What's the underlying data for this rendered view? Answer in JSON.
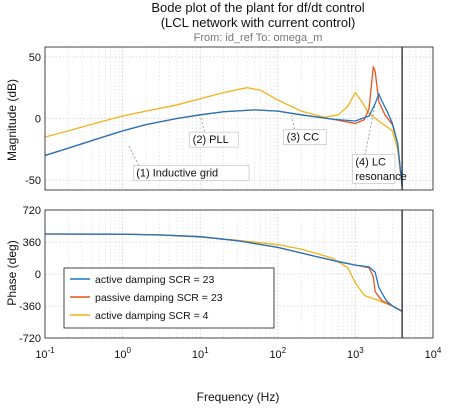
{
  "header": {
    "title": "Bode plot of the plant for df/dt control",
    "subtitle": "(LCL network with current control)",
    "from_to": "From: id_ref  To: omega_m"
  },
  "chart_data": {
    "type": "line",
    "x_scale": "log",
    "xlim": [
      0.1,
      10000
    ],
    "xlabel": "Frequency  (Hz)",
    "x_ticks": [
      {
        "value": 0.1,
        "base": "10",
        "exp": "-1"
      },
      {
        "value": 1,
        "base": "10",
        "exp": "0"
      },
      {
        "value": 10,
        "base": "10",
        "exp": "1"
      },
      {
        "value": 100,
        "base": "10",
        "exp": "2"
      },
      {
        "value": 1000,
        "base": "10",
        "exp": "3"
      },
      {
        "value": 10000,
        "base": "10",
        "exp": "4"
      }
    ],
    "grid": true,
    "vertical_marker_x": 4000,
    "magnitude": {
      "ylabel": "Magnitude (dB)",
      "ylim": [
        -58,
        58
      ],
      "y_ticks": [
        50,
        0,
        -50
      ],
      "series": [
        {
          "label": "active damping SCR = 23",
          "color": "#1f77c4",
          "points": [
            [
              0.1,
              -30
            ],
            [
              0.2,
              -24
            ],
            [
              0.5,
              -16
            ],
            [
              1,
              -10
            ],
            [
              2,
              -5
            ],
            [
              5,
              0
            ],
            [
              10,
              3
            ],
            [
              20,
              5.5
            ],
            [
              50,
              7
            ],
            [
              100,
              6
            ],
            [
              200,
              3
            ],
            [
              500,
              -0.5
            ],
            [
              1000,
              -2
            ],
            [
              1500,
              2
            ],
            [
              1800,
              12
            ],
            [
              2000,
              20
            ],
            [
              2200,
              14
            ],
            [
              2600,
              5
            ],
            [
              3000,
              -4
            ],
            [
              3500,
              -20
            ],
            [
              4000,
              -55
            ]
          ]
        },
        {
          "label": "passive damping SCR = 23",
          "color": "#e8541e",
          "points": [
            [
              0.1,
              -30
            ],
            [
              0.2,
              -24
            ],
            [
              0.5,
              -16
            ],
            [
              1,
              -10
            ],
            [
              2,
              -5
            ],
            [
              5,
              0
            ],
            [
              10,
              3
            ],
            [
              20,
              5.5
            ],
            [
              50,
              7
            ],
            [
              100,
              6
            ],
            [
              200,
              3
            ],
            [
              500,
              -0.5
            ],
            [
              1000,
              -4
            ],
            [
              1300,
              -1
            ],
            [
              1500,
              8
            ],
            [
              1700,
              42
            ],
            [
              1800,
              38
            ],
            [
              2000,
              14
            ],
            [
              2400,
              3
            ],
            [
              3000,
              -5
            ],
            [
              3500,
              -20
            ],
            [
              4000,
              -55
            ]
          ]
        },
        {
          "label": "active damping SCR = 4",
          "color": "#f0b31a",
          "points": [
            [
              0.1,
              -15
            ],
            [
              0.2,
              -10
            ],
            [
              0.5,
              -3
            ],
            [
              1,
              2
            ],
            [
              2,
              6
            ],
            [
              5,
              11
            ],
            [
              10,
              16
            ],
            [
              20,
              21
            ],
            [
              40,
              25
            ],
            [
              60,
              23
            ],
            [
              100,
              15
            ],
            [
              200,
              6
            ],
            [
              400,
              1
            ],
            [
              600,
              3
            ],
            [
              800,
              10
            ],
            [
              1000,
              21
            ],
            [
              1200,
              14
            ],
            [
              1500,
              4
            ],
            [
              2000,
              -2
            ],
            [
              3000,
              -10
            ],
            [
              3500,
              -25
            ],
            [
              4000,
              -55
            ]
          ]
        }
      ],
      "annotations": [
        {
          "text": "(1) Inductive grid",
          "x": 1.5,
          "y": -47
        },
        {
          "text": "(2) PLL",
          "x": 8,
          "y": -20
        },
        {
          "text": "(3) CC",
          "x": 130,
          "y": -18
        },
        {
          "text": "(4) LC",
          "x": 1000,
          "y": -38
        },
        {
          "text": "resonance",
          "x": 1000,
          "y": -50
        }
      ]
    },
    "phase": {
      "ylabel": "Phase (deg)",
      "ylim": [
        -720,
        720
      ],
      "y_ticks": [
        720,
        360,
        0,
        -360,
        -720
      ],
      "series": [
        {
          "label": "active damping SCR = 23",
          "color": "#1f77c4",
          "points": [
            [
              0.1,
              450
            ],
            [
              1,
              448
            ],
            [
              3,
              440
            ],
            [
              10,
              420
            ],
            [
              30,
              375
            ],
            [
              100,
              300
            ],
            [
              300,
              200
            ],
            [
              600,
              140
            ],
            [
              1000,
              100
            ],
            [
              1500,
              80
            ],
            [
              1800,
              20
            ],
            [
              2000,
              -150
            ],
            [
              2500,
              -300
            ],
            [
              3000,
              -360
            ],
            [
              4000,
              -420
            ]
          ]
        },
        {
          "label": "passive damping SCR = 23",
          "color": "#e8541e",
          "points": [
            [
              0.1,
              450
            ],
            [
              1,
              448
            ],
            [
              3,
              440
            ],
            [
              10,
              420
            ],
            [
              30,
              375
            ],
            [
              100,
              300
            ],
            [
              300,
              200
            ],
            [
              600,
              140
            ],
            [
              1000,
              100
            ],
            [
              1500,
              70
            ],
            [
              1700,
              -30
            ],
            [
              1800,
              -200
            ],
            [
              2200,
              -300
            ],
            [
              3000,
              -360
            ],
            [
              4000,
              -420
            ]
          ]
        },
        {
          "label": "active damping SCR = 4",
          "color": "#f0b31a",
          "points": [
            [
              0.1,
              450
            ],
            [
              1,
              447
            ],
            [
              3,
              438
            ],
            [
              10,
              415
            ],
            [
              30,
              380
            ],
            [
              100,
              330
            ],
            [
              200,
              280
            ],
            [
              500,
              180
            ],
            [
              800,
              70
            ],
            [
              1000,
              -100
            ],
            [
              1300,
              -240
            ],
            [
              2000,
              -300
            ],
            [
              3000,
              -360
            ],
            [
              4000,
              -420
            ]
          ]
        }
      ]
    },
    "legend": {
      "placement": "phase-panel-lower-left",
      "entries": [
        {
          "label": "active damping SCR = 23",
          "color": "#1f77c4"
        },
        {
          "label": "passive damping SCR = 23",
          "color": "#e8541e"
        },
        {
          "label": "active damping SCR = 4",
          "color": "#f0b31a"
        }
      ]
    }
  }
}
